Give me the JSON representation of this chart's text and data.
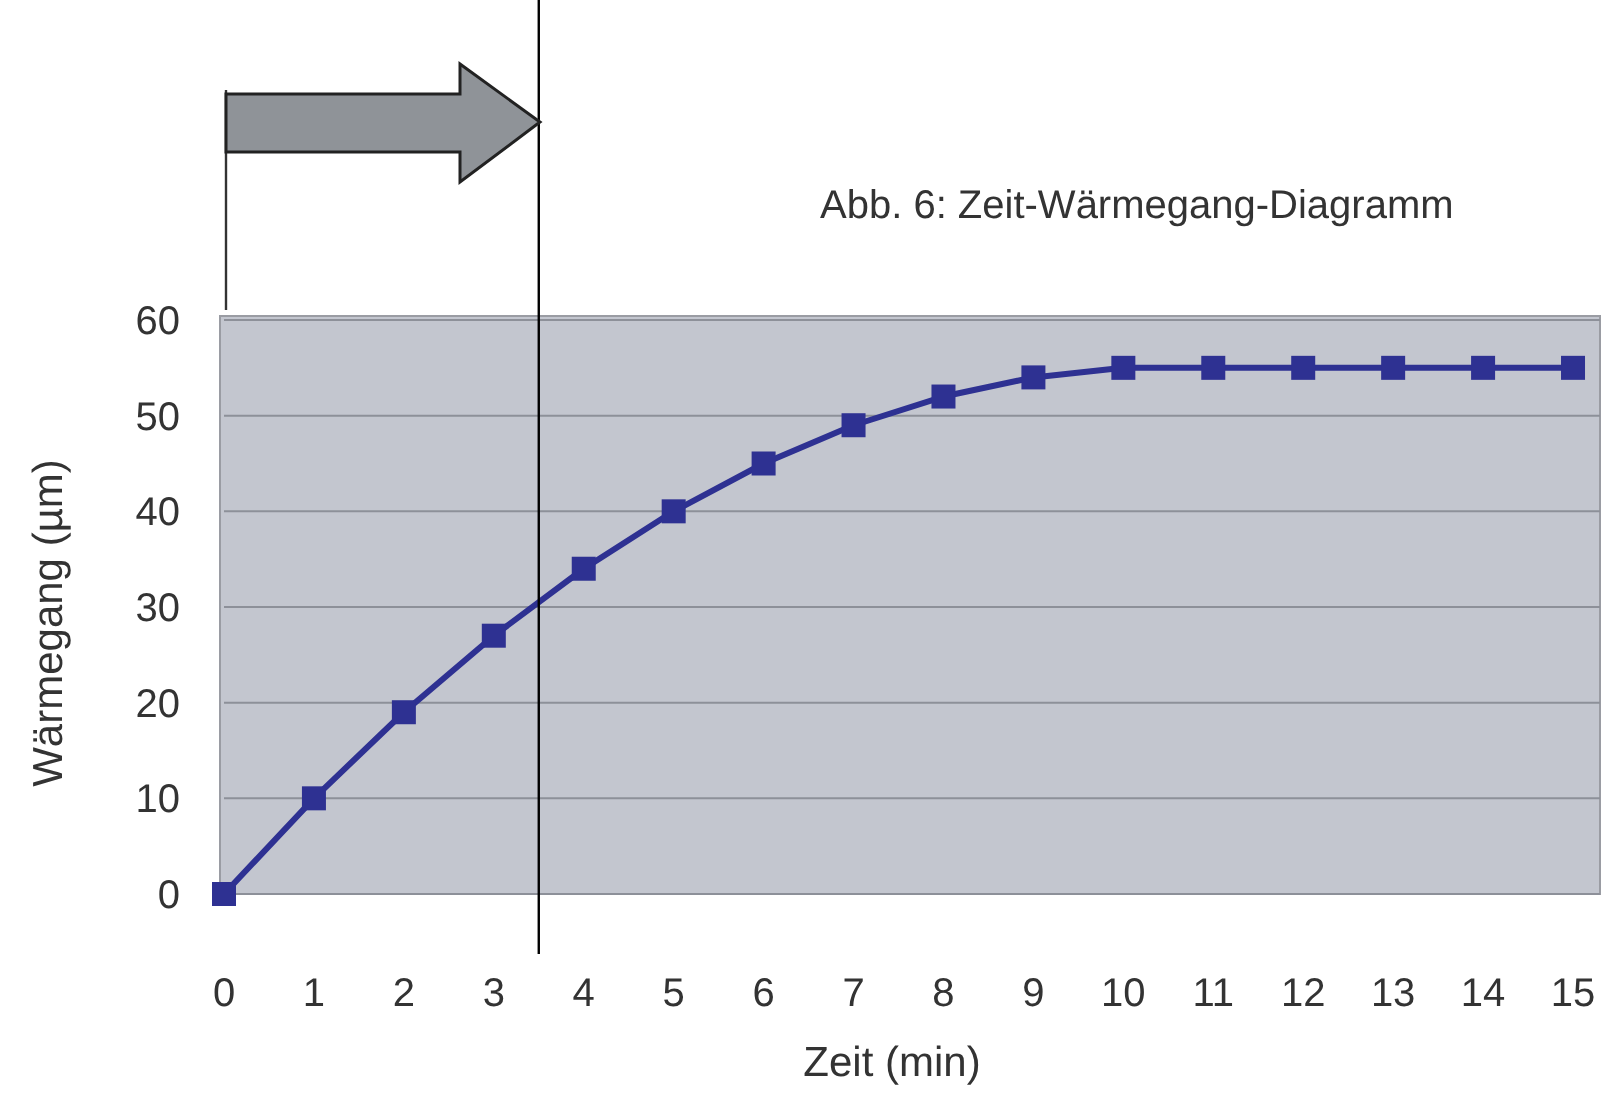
{
  "chart_data": {
    "type": "line",
    "title": "Abb. 6:  Zeit-Wärmegang-Diagramm",
    "xlabel": "Zeit (min)",
    "ylabel": "Wärmegang (µm)",
    "x": [
      0,
      1,
      2,
      3,
      4,
      5,
      6,
      7,
      8,
      9,
      10,
      11,
      12,
      13,
      14,
      15
    ],
    "series": [
      {
        "color": "#2e3192",
        "values": [
          0,
          10,
          19,
          27,
          34,
          40,
          45,
          49,
          52,
          54,
          55,
          55,
          55,
          55,
          55,
          55
        ]
      }
    ],
    "xlim": [
      0,
      15.3
    ],
    "xticks": [
      0,
      1,
      2,
      3,
      4,
      5,
      6,
      7,
      8,
      9,
      10,
      11,
      12,
      13,
      14,
      15
    ],
    "ylim": [
      0,
      60
    ],
    "yticks": [
      0,
      10,
      20,
      30,
      40,
      50,
      60
    ],
    "grid": "y",
    "marker": "square",
    "line_style": "solid",
    "ref_lines": [
      {
        "axis": "x",
        "value": 3.5,
        "color": "#000000"
      }
    ]
  }
}
